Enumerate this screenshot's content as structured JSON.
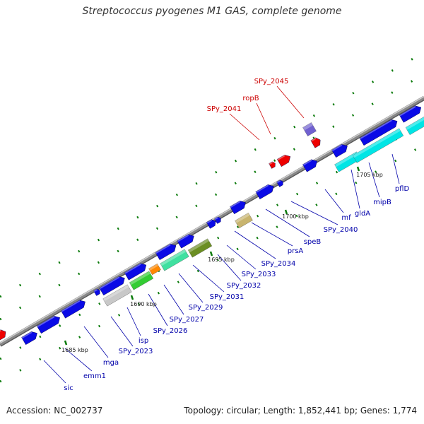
{
  "title": "Streptococcus pyogenes M1 GAS, complete genome",
  "footer": {
    "accession": "Accession: NC_002737",
    "topology": "Topology: circular; Length: 1,852,441 bp; Genes: 1,774"
  },
  "colors": {
    "blue": "#0a0ae6",
    "red": "#ee0000",
    "cyan": "#00e5e5",
    "gray": "#c8c8c8",
    "green": "#33cc33",
    "orange": "#ff8800",
    "aquamarine": "#40e0a0",
    "olive": "#6b8e23",
    "khaki": "#c8b46e",
    "slate": "#7060d0",
    "backbone": "#888888",
    "label_blue": "#0000aa",
    "label_red": "#cc0000"
  },
  "scale_labels": [
    "1685 kbp",
    "1690 kbp",
    "1695 kbp",
    "1700 kbp",
    "1705 kbp"
  ],
  "labels": [
    {
      "text": "sic",
      "color": "blue"
    },
    {
      "text": "emm1",
      "color": "blue"
    },
    {
      "text": "mga",
      "color": "blue"
    },
    {
      "text": "SPy_2023",
      "color": "blue"
    },
    {
      "text": "isp",
      "color": "blue"
    },
    {
      "text": "SPy_2026",
      "color": "blue"
    },
    {
      "text": "SPy_2027",
      "color": "blue"
    },
    {
      "text": "SPy_2029",
      "color": "blue"
    },
    {
      "text": "SPy_2031",
      "color": "blue"
    },
    {
      "text": "SPy_2032",
      "color": "blue"
    },
    {
      "text": "SPy_2033",
      "color": "blue"
    },
    {
      "text": "SPy_2034",
      "color": "blue"
    },
    {
      "text": "prsA",
      "color": "blue"
    },
    {
      "text": "speB",
      "color": "blue"
    },
    {
      "text": "SPy_2040",
      "color": "blue"
    },
    {
      "text": "mf",
      "color": "blue"
    },
    {
      "text": "gldA",
      "color": "blue"
    },
    {
      "text": "mipB",
      "color": "blue"
    },
    {
      "text": "pflD",
      "color": "blue"
    },
    {
      "text": "SPy_2041",
      "color": "red"
    },
    {
      "text": "ropB",
      "color": "red"
    },
    {
      "text": "SPy_2045",
      "color": "red"
    }
  ]
}
